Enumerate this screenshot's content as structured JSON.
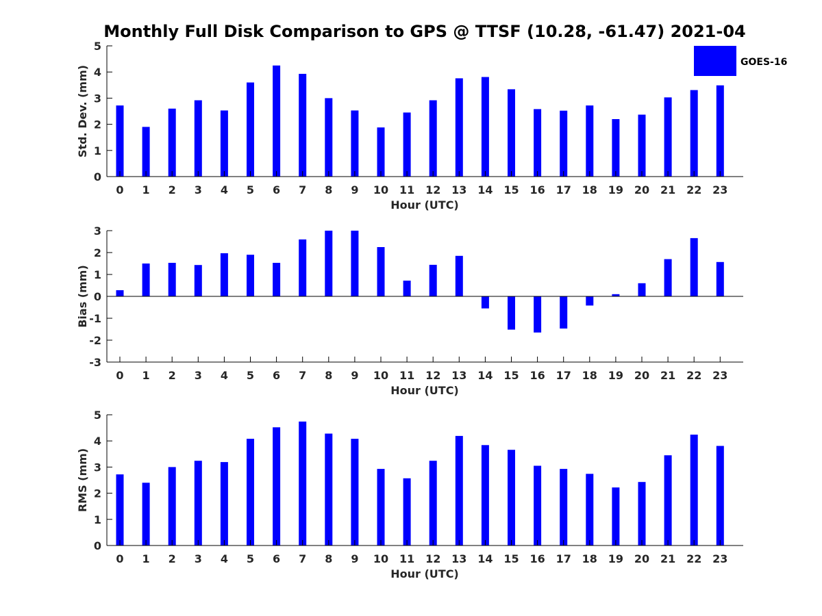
{
  "title": "Monthly Full Disk Comparison to GPS @ TTSF (10.28, -61.47) 2021-04",
  "legend": {
    "label": "GOES-16",
    "color": "#0000ff"
  },
  "chart_data": [
    {
      "type": "bar",
      "name": "std-dev",
      "xlabel": "Hour (UTC)",
      "ylabel": "Std. Dev. (mm)",
      "categories": [
        "0",
        "1",
        "2",
        "3",
        "4",
        "5",
        "6",
        "7",
        "8",
        "9",
        "10",
        "11",
        "12",
        "13",
        "14",
        "15",
        "16",
        "17",
        "18",
        "19",
        "20",
        "21",
        "22",
        "23"
      ],
      "ylim": [
        0,
        5
      ],
      "yticks": [
        0,
        1,
        2,
        3,
        4,
        5
      ],
      "series": [
        {
          "name": "GOES-16",
          "values": [
            2.72,
            1.9,
            2.6,
            2.92,
            2.53,
            3.6,
            4.25,
            3.93,
            3.0,
            2.53,
            1.88,
            2.45,
            2.92,
            3.76,
            3.81,
            3.34,
            2.58,
            2.52,
            2.72,
            2.2,
            2.37,
            3.03,
            3.31,
            3.49
          ]
        }
      ]
    },
    {
      "type": "bar",
      "name": "bias",
      "xlabel": "Hour (UTC)",
      "ylabel": "Bias (mm)",
      "categories": [
        "0",
        "1",
        "2",
        "3",
        "4",
        "5",
        "6",
        "7",
        "8",
        "9",
        "10",
        "11",
        "12",
        "13",
        "14",
        "15",
        "16",
        "17",
        "18",
        "19",
        "20",
        "21",
        "22",
        "23"
      ],
      "ylim": [
        -3,
        3
      ],
      "yticks": [
        -3,
        -2,
        -1,
        0,
        1,
        2,
        3
      ],
      "zero_line": true,
      "series": [
        {
          "name": "GOES-16",
          "values": [
            0.28,
            1.5,
            1.53,
            1.43,
            1.97,
            1.9,
            1.53,
            2.6,
            3.0,
            3.0,
            2.25,
            0.72,
            1.44,
            1.85,
            -0.55,
            -1.52,
            -1.65,
            -1.47,
            -0.42,
            0.1,
            0.6,
            1.7,
            2.66,
            1.57
          ]
        }
      ]
    },
    {
      "type": "bar",
      "name": "rms",
      "xlabel": "Hour (UTC)",
      "ylabel": "RMS (mm)",
      "categories": [
        "0",
        "1",
        "2",
        "3",
        "4",
        "5",
        "6",
        "7",
        "8",
        "9",
        "10",
        "11",
        "12",
        "13",
        "14",
        "15",
        "16",
        "17",
        "18",
        "19",
        "20",
        "21",
        "22",
        "23"
      ],
      "ylim": [
        0,
        5
      ],
      "yticks": [
        0,
        1,
        2,
        3,
        4,
        5
      ],
      "series": [
        {
          "name": "GOES-16",
          "values": [
            2.72,
            2.4,
            3.0,
            3.24,
            3.19,
            4.08,
            4.52,
            4.74,
            4.28,
            4.08,
            2.93,
            2.57,
            3.24,
            4.19,
            3.84,
            3.66,
            3.05,
            2.93,
            2.74,
            2.22,
            2.43,
            3.45,
            4.24,
            3.81
          ]
        }
      ]
    }
  ]
}
